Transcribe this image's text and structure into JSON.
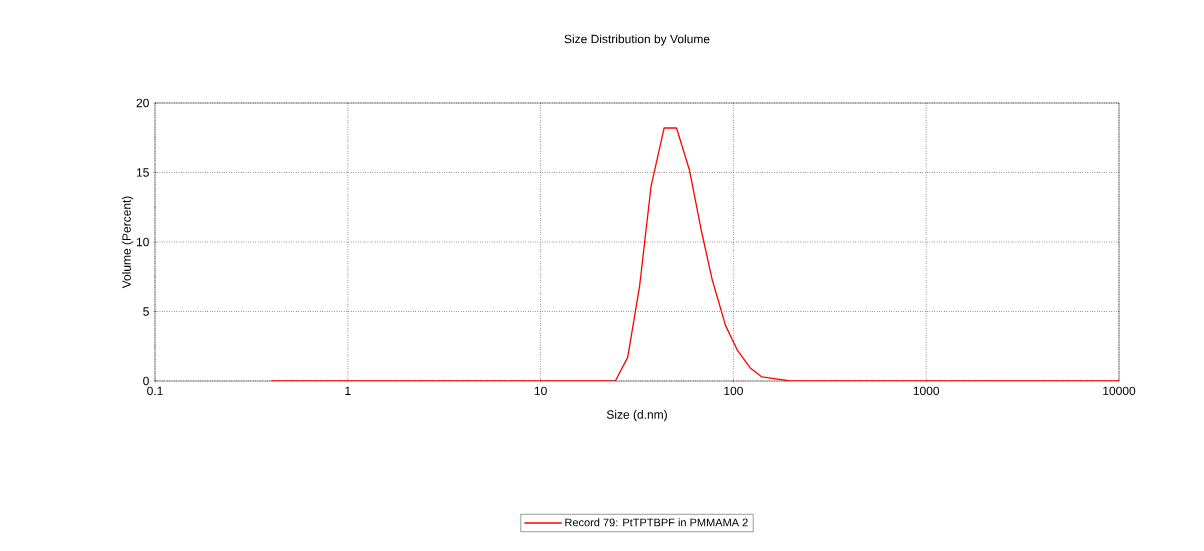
{
  "chart_data": {
    "type": "line",
    "title": "Size Distribution by Volume",
    "xlabel": "Size (d.nm)",
    "ylabel": "Volume (Percent)",
    "x": [
      0.4,
      24.4,
      28.3,
      32.6,
      37.4,
      43.7,
      50.7,
      59.1,
      68,
      77.6,
      91,
      105,
      122,
      140,
      197,
      10000
    ],
    "series": [
      {
        "name": "Record 79: PtTPTBPF in PMMAMA 2",
        "color": "#ff0000",
        "values": [
          0,
          0,
          1.7,
          6.8,
          14.0,
          18.2,
          18.2,
          15.2,
          10.9,
          7.3,
          4.0,
          2.2,
          0.96,
          0.3,
          0,
          0
        ]
      }
    ],
    "log": "x",
    "xlim": [
      0.1,
      10000
    ],
    "xticks": [
      0.1,
      1,
      10,
      100,
      1000,
      10000
    ],
    "ylim": [
      0,
      20
    ],
    "yticks": [
      0,
      5,
      10,
      15,
      20
    ],
    "grid": true,
    "legend": "bottom",
    "marker": "none",
    "line_style": "solid"
  }
}
